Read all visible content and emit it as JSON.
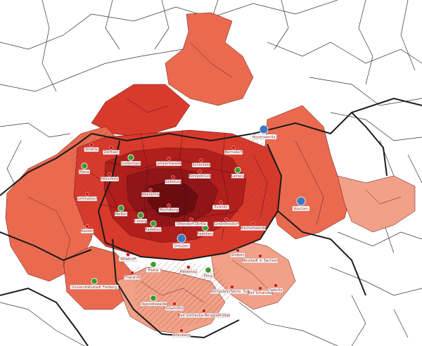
{
  "colors": {
    "level1": "#f7c8b4",
    "level2": "#f2a088",
    "level3": "#ea6a50",
    "level4": "#d83a2c",
    "level5": "#b01f1c",
    "level6": "#7a0f12",
    "border": "#1a1a1a",
    "green_marker": "#3a9a2e",
    "blue_marker": "#3b78c4",
    "red_marker": "#d01818"
  },
  "cities": [
    {
      "name": "Hoyerswerda",
      "type": "blue"
    },
    {
      "name": "Bautzen",
      "type": "blue"
    },
    {
      "name": "Dresden",
      "type": "blue"
    },
    {
      "name": "Riesa",
      "type": "green"
    },
    {
      "name": "Großenhain",
      "type": "green"
    },
    {
      "name": "Meißen",
      "type": "green"
    },
    {
      "name": "Coswig",
      "type": "green"
    },
    {
      "name": "Radebeul",
      "type": "green"
    },
    {
      "name": "Radeberg",
      "type": "green"
    },
    {
      "name": "Kamenz",
      "type": "green"
    },
    {
      "name": "Freital",
      "type": "green"
    },
    {
      "name": "Pirna",
      "type": "green"
    },
    {
      "name": "Dippoldiswalde",
      "type": "green"
    },
    {
      "name": "Universitätsstadt Freiberg",
      "type": "green"
    },
    {
      "name": "Strehla",
      "type": "red"
    },
    {
      "name": "Zeithain",
      "type": "red"
    },
    {
      "name": "Nünchritz",
      "type": "red"
    },
    {
      "name": "Lommatzsch",
      "type": "red"
    },
    {
      "name": "Nossen",
      "type": "red"
    },
    {
      "name": "Lampertswalde",
      "type": "red"
    },
    {
      "name": "Schönfeld",
      "type": "red"
    },
    {
      "name": "Königsbrück",
      "type": "red"
    },
    {
      "name": "Bernsdorf",
      "type": "red"
    },
    {
      "name": "Pulsnitz",
      "type": "red"
    },
    {
      "name": "Moritzburg",
      "type": "red"
    },
    {
      "name": "Ottendorf-Okrilla",
      "type": "red"
    },
    {
      "name": "Großröhrsdorf",
      "type": "red"
    },
    {
      "name": "Bischofswerda",
      "type": "red"
    },
    {
      "name": "Wilsdruff",
      "type": "red"
    },
    {
      "name": "Tharandt",
      "type": "red"
    },
    {
      "name": "Heidenau",
      "type": "red"
    },
    {
      "name": "Stolpen",
      "type": "red"
    },
    {
      "name": "Neustadt in Sachsen",
      "type": "red"
    },
    {
      "name": "Sebnitz",
      "type": "red"
    },
    {
      "name": "Königstein/Sächs. Schw.",
      "type": "red"
    },
    {
      "name": "Bad Schandau",
      "type": "red"
    },
    {
      "name": "Bad Gottleuba-Berggießhübel",
      "type": "red"
    },
    {
      "name": "Glashütte",
      "type": "red"
    },
    {
      "name": "Altenberg",
      "type": "red"
    },
    {
      "name": "Weinböhla",
      "type": "red"
    },
    {
      "name": "Radeburg",
      "type": "red"
    }
  ]
}
